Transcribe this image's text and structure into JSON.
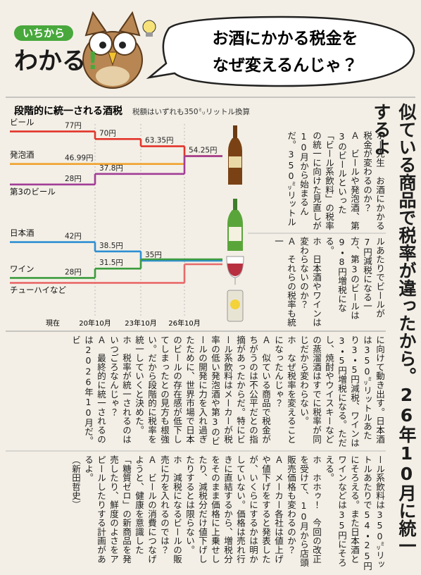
{
  "logo": {
    "top": "いちから",
    "main": "わかる",
    "mark": "!"
  },
  "question": [
    "お酒にかかる税金を",
    "なぜ変えるんじゃ？"
  ],
  "headline": "似ている商品で税率が違ったから。26年10月に統一するよ",
  "chart_data": {
    "type": "line",
    "title": "段階的に統一される酒税",
    "subtitle": "税額はいずれも350㍉リットル換算",
    "categories": [
      "現在",
      "20年10月",
      "23年10月",
      "26年10月"
    ],
    "groups": [
      {
        "ylim": [
          24,
          80
        ],
        "series": [
          {
            "name": "ビール",
            "color": "#e2352b",
            "values": [
              77,
              70,
              63.35,
              54.25
            ],
            "value_labels": [
              "77円",
              "70円",
              "63.35円",
              "54.25円"
            ]
          },
          {
            "name": "発泡酒",
            "color": "#f0a22e",
            "values": [
              46.99,
              46.99,
              46.99,
              54.25
            ],
            "value_labels": [
              "46.99円",
              null,
              null,
              null
            ]
          },
          {
            "name": "第3のビール",
            "color": "#a23d97",
            "values": [
              28,
              37.8,
              37.8,
              54.25
            ],
            "value_labels": [
              "28円",
              "37.8円",
              null,
              null
            ]
          }
        ]
      },
      {
        "ylim": [
          26,
          44
        ],
        "series": [
          {
            "name": "日本酒",
            "color": "#2f8fd2",
            "values": [
              42,
              38.5,
              35,
              35
            ],
            "value_labels": [
              "42円",
              "38.5円",
              "35円",
              null
            ]
          },
          {
            "name": "ワイン",
            "color": "#3c9b3e",
            "values": [
              28,
              31.5,
              35,
              35
            ],
            "value_labels": [
              "28円",
              "31.5円",
              null,
              null
            ]
          },
          {
            "name": "チューハイなど",
            "color": "#e86a6a",
            "values": [
              28,
              28,
              28,
              35
            ],
            "value_labels": [
              null,
              null,
              null,
              null
            ]
          }
        ]
      }
    ]
  },
  "body": [
    [
      "ホー先生　お酒にかかる税金が変わるのか？",
      "Ａ　ビールや発泡酒、第3のビールといった「ビール系飲料」の税率の統一に向けた見直しが10月から始まるんだ。350㍉リットル"
    ],
    [
      "ルあたりでビールが7円減税になる一方、第3のビールは9・8円増税になる。",
      "ホ　日本酒やワインは変わらないのか？",
      "Ａ　それらの税率も統一"
    ],
    [
      "に向けて動き出す。日本酒は350㍉リットルあたり3・5円減税、ワインは3・5円増税になる。ただし、焼酎やウイスキーなどの蒸溜酒はすでに税率が同じだから変わらない。",
      "ホ　なぜ税率を変えることになったんじゃ？",
      "Ａ　似ている商品で税金がちがうのは不公平だとの指摘があったからだ。特にビール系飲料はメーカーが税率の低い発泡酒や第3のビールの開発に力を入れ過ぎたために、世界市場で日本のビールの存在感が低下してしまったとの見方も根強い。だから段階的に税率を統一していくと決めた。",
      "ホ　税率が統一されるのはいつごろなんじゃ？",
      "Ａ　最終的に統一されるのは2026年10月だ。ビ"
    ],
    [
      "ール系飲料は350㍉リットルあたりで54・25円にそろえる。また日本酒とワインなどは35円にそろえる。",
      "ホ　ホホゥ！　今回の改正を受けて、10月から店頭販売価格も変わるのか？",
      "Ａ　メーカー各社は値上げや値下げをすると発表したが、いくらにするかは明かしていない。価格は売れ行きに直結するから、増税分をそのまま価格に上乗せしたり、減税分だけ値下げしたりするとは限らない。",
      "ホ　減税になるビールの販売に力を入れるのでは？",
      "Ａ　ビールの消費につなげようと、健康を意識した「糖質ゼロ」の新商品を発売したり、鮮度のよさをアピールしたりする計画があるよ。",
      "（新田哲史）"
    ]
  ]
}
